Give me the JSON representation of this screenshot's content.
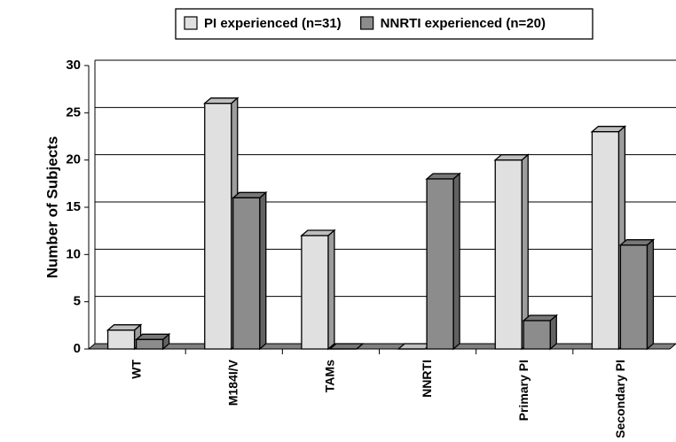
{
  "chart_data": {
    "type": "bar3d",
    "y_label": "Number of Subjects",
    "categories": [
      "WT",
      "M184I/V",
      "TAMs",
      "NNRTI",
      "Primary PI",
      "Secondary PI"
    ],
    "series": [
      {
        "name": "PI experienced (n=31)",
        "color": "#e0e0e0",
        "values": [
          2,
          26,
          12,
          0,
          20,
          23
        ]
      },
      {
        "name": "NNRTI experienced (n=20)",
        "color": "#8c8c8c",
        "values": [
          1,
          16,
          0,
          18,
          3,
          11
        ]
      }
    ],
    "ylim": [
      0,
      30
    ],
    "yticks": [
      0,
      5,
      10,
      15,
      20,
      25,
      30
    ],
    "grid": true
  }
}
